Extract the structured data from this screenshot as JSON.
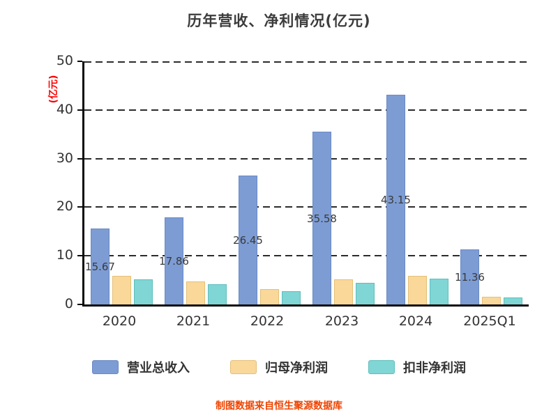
{
  "title": "历年营收、净利情况(亿元)",
  "y_axis_unit": "(亿元)",
  "footer": {
    "text": "制图数据来自恒生聚源数据库"
  },
  "chart_data": {
    "type": "bar",
    "title": "历年营收、净利情况(亿元)",
    "categories": [
      "2020",
      "2021",
      "2022",
      "2023",
      "2024",
      "2025Q1"
    ],
    "series": [
      {
        "name": "营业总收入",
        "color": "#7d9cd4",
        "border_color": "#6989c4",
        "values": [
          15.67,
          17.86,
          26.45,
          35.58,
          43.15,
          11.36
        ],
        "value_labels": [
          "15.67",
          "17.86",
          "26.45",
          "35.58",
          "43.15",
          "11.36"
        ]
      },
      {
        "name": "归母净利润",
        "color": "#f9d89a",
        "border_color": "#e4bf78",
        "values": [
          5.9,
          4.7,
          3.2,
          5.1,
          5.9,
          1.6
        ]
      },
      {
        "name": "扣非净利润",
        "color": "#7fd6d4",
        "border_color": "#5fbebc",
        "values": [
          5.2,
          4.2,
          2.7,
          4.5,
          5.3,
          1.5
        ]
      }
    ],
    "xlabel": "",
    "ylabel": "(亿元)",
    "ylim": [
      0,
      50
    ],
    "yticks": [
      0,
      10,
      20,
      30,
      40,
      50
    ],
    "grid": "dashed-horizontal",
    "legend_position": "bottom",
    "value_labels_note": "values printed inside 营业总收入 bars, clipped by bar width"
  }
}
